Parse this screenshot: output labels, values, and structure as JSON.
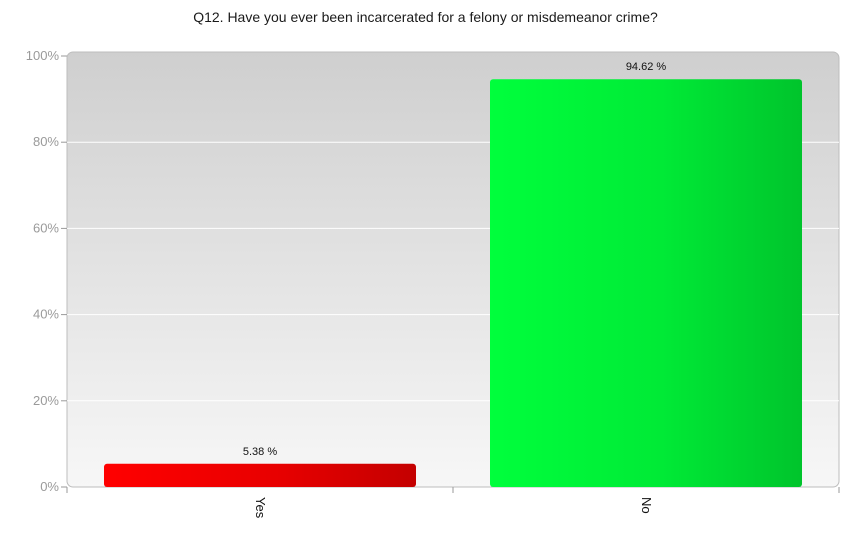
{
  "chart_data": {
    "type": "bar",
    "title": "Q12. Have you ever been incarcerated for a felony or misdemeanor crime?",
    "categories": [
      "Yes",
      "No"
    ],
    "values": [
      5.38,
      94.62
    ],
    "value_labels": [
      "5.38 %",
      "94.62 %"
    ],
    "colors": [
      "#e00000",
      "#00e635"
    ],
    "ylim": [
      0,
      100
    ],
    "yticks": [
      0,
      20,
      40,
      60,
      80,
      100
    ],
    "ytick_labels": [
      "0%",
      "20%",
      "40%",
      "60%",
      "80%",
      "100%"
    ],
    "grid": true,
    "legend": "none"
  }
}
